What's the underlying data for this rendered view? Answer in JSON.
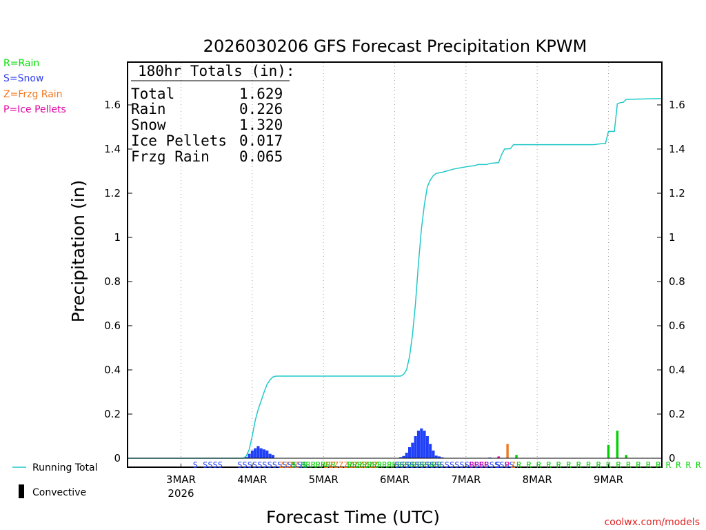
{
  "chart_data": {
    "type": "bar+line",
    "title": "2026030206 GFS Forecast Precipitation KPWM",
    "xlabel": "Forecast Time (UTC)",
    "ylabel": "Precipitation (in)",
    "ylim": [
      -0.04,
      1.8
    ],
    "yticks": [
      0,
      0.2,
      0.4,
      0.6,
      0.8,
      1.0,
      1.2,
      1.4,
      1.6
    ],
    "ytick_labels": [
      "0",
      "0.2",
      "0.4",
      "0.6",
      "0.8",
      "1",
      "1.2",
      "1.4",
      "1.6"
    ],
    "xlim_hours": [
      0,
      180
    ],
    "grid": "dotted vertical at day boundaries",
    "x_ticks": [
      {
        "hour": 18,
        "label": "3MAR",
        "sublabel": "2026"
      },
      {
        "hour": 42,
        "label": "4MAR",
        "sublabel": ""
      },
      {
        "hour": 66,
        "label": "5MAR",
        "sublabel": ""
      },
      {
        "hour": 90,
        "label": "6MAR",
        "sublabel": ""
      },
      {
        "hour": 114,
        "label": "7MAR",
        "sublabel": ""
      },
      {
        "hour": 138,
        "label": "8MAR",
        "sublabel": ""
      },
      {
        "hour": 162,
        "label": "9MAR",
        "sublabel": ""
      }
    ],
    "type_legend": [
      {
        "text": "R=Rain",
        "color": "#00e000"
      },
      {
        "text": "S=Snow",
        "color": "#3040f0"
      },
      {
        "text": "Z=Frzg Rain",
        "color": "#f07820"
      },
      {
        "text": "P=Ice Pellets",
        "color": "#e000a0"
      }
    ],
    "series_legend": {
      "running_total": "Running Total",
      "convective": "Convective"
    },
    "totals_box": {
      "heading": "180hr Totals (in):",
      "rows": [
        {
          "label": "Total",
          "value": "1.629"
        },
        {
          "label": "Rain",
          "value": "0.226"
        },
        {
          "label": "Snow",
          "value": "1.320"
        },
        {
          "label": "Ice Pellets",
          "value": "0.017"
        },
        {
          "label": "Frzg Rain",
          "value": "0.065"
        }
      ]
    },
    "type_colors": {
      "S": "#2040f8",
      "R": "#00d000",
      "Z": "#f07820",
      "P": "#e000a0"
    },
    "line_color": "#20c8c8",
    "bars": [
      {
        "hour": 40,
        "value": 0.005,
        "type": "S"
      },
      {
        "hour": 41,
        "value": 0.02,
        "type": "S"
      },
      {
        "hour": 42,
        "value": 0.035,
        "type": "S"
      },
      {
        "hour": 43,
        "value": 0.045,
        "type": "S"
      },
      {
        "hour": 44,
        "value": 0.055,
        "type": "S"
      },
      {
        "hour": 45,
        "value": 0.045,
        "type": "S"
      },
      {
        "hour": 46,
        "value": 0.04,
        "type": "S"
      },
      {
        "hour": 47,
        "value": 0.035,
        "type": "S"
      },
      {
        "hour": 48,
        "value": 0.02,
        "type": "S"
      },
      {
        "hour": 49,
        "value": 0.015,
        "type": "S"
      },
      {
        "hour": 92,
        "value": 0.005,
        "type": "S"
      },
      {
        "hour": 93,
        "value": 0.01,
        "type": "S"
      },
      {
        "hour": 94,
        "value": 0.025,
        "type": "S"
      },
      {
        "hour": 95,
        "value": 0.05,
        "type": "S"
      },
      {
        "hour": 96,
        "value": 0.07,
        "type": "S"
      },
      {
        "hour": 97,
        "value": 0.1,
        "type": "S"
      },
      {
        "hour": 98,
        "value": 0.125,
        "type": "S"
      },
      {
        "hour": 99,
        "value": 0.135,
        "type": "S"
      },
      {
        "hour": 100,
        "value": 0.125,
        "type": "S"
      },
      {
        "hour": 101,
        "value": 0.1,
        "type": "S"
      },
      {
        "hour": 102,
        "value": 0.065,
        "type": "S"
      },
      {
        "hour": 103,
        "value": 0.035,
        "type": "S"
      },
      {
        "hour": 104,
        "value": 0.012,
        "type": "S"
      },
      {
        "hour": 105,
        "value": 0.008,
        "type": "S"
      },
      {
        "hour": 106,
        "value": 0.004,
        "type": "S"
      },
      {
        "hour": 122,
        "value": 0.003,
        "type": "S"
      },
      {
        "hour": 125,
        "value": 0.008,
        "type": "P"
      },
      {
        "hour": 128,
        "value": 0.065,
        "type": "Z"
      },
      {
        "hour": 131,
        "value": 0.015,
        "type": "R"
      },
      {
        "hour": 162,
        "value": 0.06,
        "type": "R"
      },
      {
        "hour": 165,
        "value": 0.125,
        "type": "R"
      },
      {
        "hour": 168,
        "value": 0.015,
        "type": "R"
      }
    ],
    "running_total": [
      [
        0,
        0
      ],
      [
        39,
        0
      ],
      [
        40,
        0.01
      ],
      [
        41,
        0.04
      ],
      [
        42,
        0.1
      ],
      [
        43,
        0.17
      ],
      [
        44,
        0.22
      ],
      [
        45,
        0.26
      ],
      [
        46,
        0.3
      ],
      [
        47,
        0.335
      ],
      [
        48,
        0.355
      ],
      [
        49,
        0.368
      ],
      [
        50,
        0.372
      ],
      [
        92,
        0.372
      ],
      [
        93,
        0.38
      ],
      [
        94,
        0.4
      ],
      [
        95,
        0.46
      ],
      [
        96,
        0.56
      ],
      [
        97,
        0.7
      ],
      [
        98,
        0.88
      ],
      [
        99,
        1.04
      ],
      [
        100,
        1.15
      ],
      [
        101,
        1.23
      ],
      [
        102,
        1.26
      ],
      [
        103,
        1.28
      ],
      [
        104,
        1.29
      ],
      [
        106,
        1.295
      ],
      [
        110,
        1.31
      ],
      [
        115,
        1.322
      ],
      [
        117,
        1.325
      ],
      [
        118,
        1.33
      ],
      [
        121,
        1.33
      ],
      [
        122,
        1.335
      ],
      [
        125,
        1.338
      ],
      [
        126,
        1.375
      ],
      [
        127,
        1.4
      ],
      [
        129,
        1.402
      ],
      [
        130,
        1.42
      ],
      [
        157,
        1.42
      ],
      [
        160,
        1.425
      ],
      [
        161,
        1.425
      ],
      [
        162,
        1.48
      ],
      [
        164,
        1.48
      ],
      [
        165,
        1.605
      ],
      [
        166,
        1.61
      ],
      [
        167,
        1.612
      ],
      [
        168,
        1.625
      ],
      [
        180,
        1.629
      ]
    ],
    "type_strip": [
      {
        "hour": 22,
        "text": "S SSSS",
        "type": "S"
      },
      {
        "hour": 37,
        "text": "SSSSSSSSSSSSSS",
        "type": "S"
      },
      {
        "hour": 51,
        "text": "ZZZZ",
        "type": "Z"
      },
      {
        "hour": 55,
        "text": "R RRRRRRR",
        "type": "R"
      },
      {
        "hour": 66,
        "text": "ZZZZZZZZZZZ",
        "type": "Z"
      },
      {
        "hour": 74,
        "text": "RRRRRRRRRRRRRRRRRRR",
        "type": "R"
      },
      {
        "hour": 90,
        "text": "SSSSSSSSSSSSSSSSSSSSSSSS",
        "type": "S"
      },
      {
        "hour": 115,
        "text": "PPPP",
        "type": "P"
      },
      {
        "hour": 124,
        "text": "S",
        "type": "S"
      },
      {
        "hour": 127,
        "text": "P",
        "type": "P"
      },
      {
        "hour": 129,
        "text": "Z",
        "type": "Z"
      },
      {
        "hour": 131,
        "text": "R R R R R R R R R R R R R R R R R R R R",
        "type": "R"
      }
    ],
    "footer": "coolwx.com/models"
  }
}
